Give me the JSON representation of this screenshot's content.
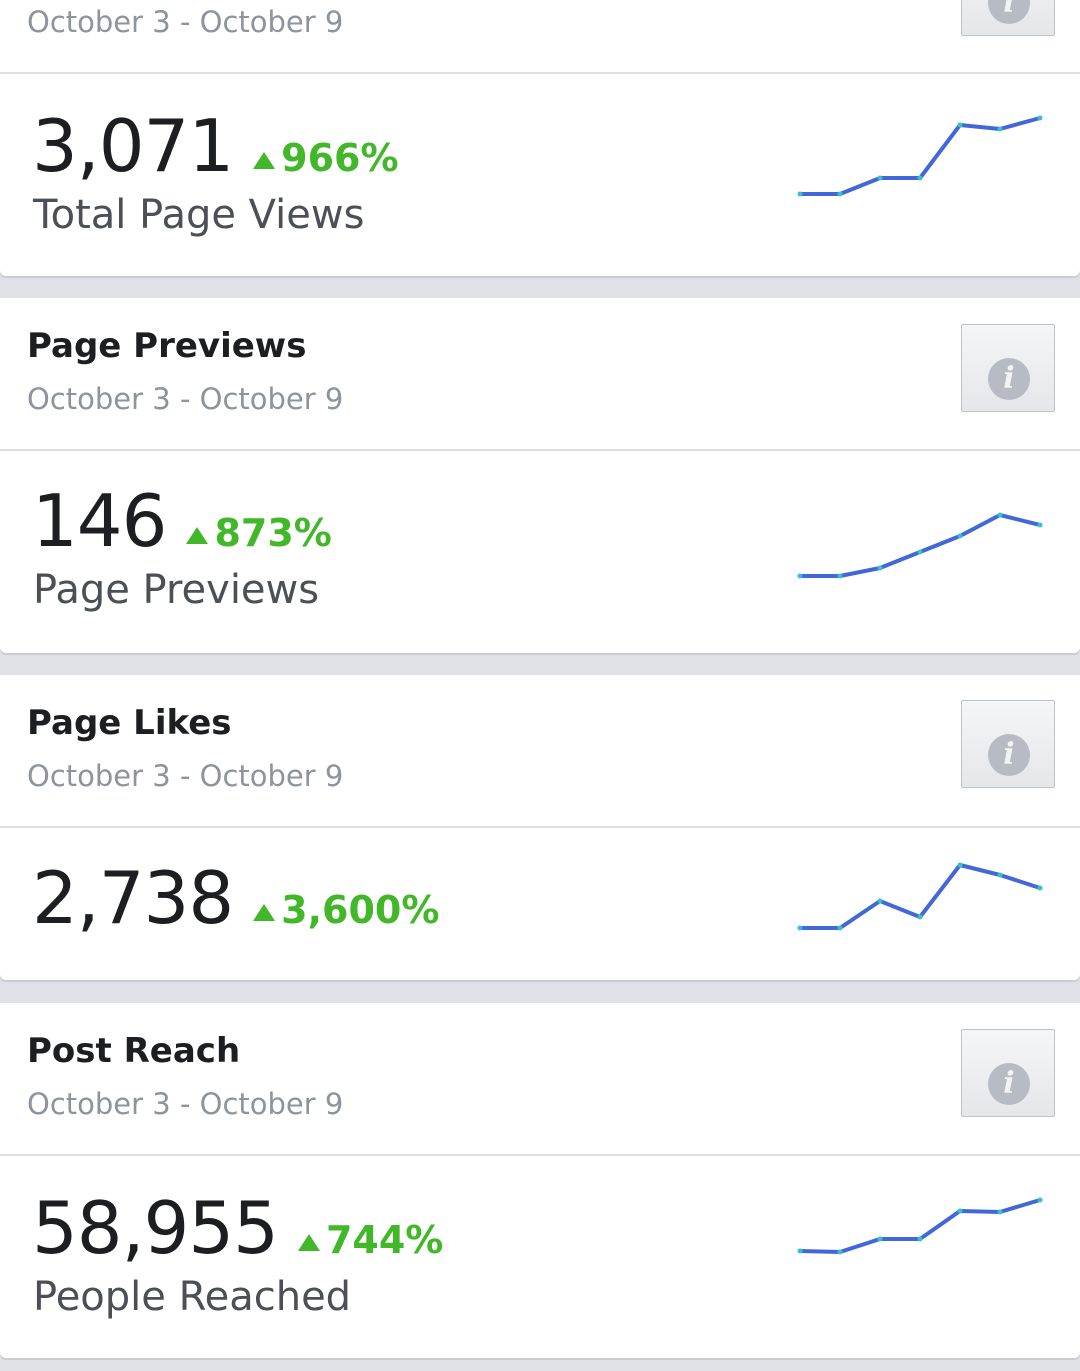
{
  "colors": {
    "accent": "#4267b2",
    "positive": "#42b72a",
    "line": "#4267d8"
  },
  "top_card": {
    "date": "October 3 - October 9"
  },
  "sections": [
    {
      "stat": {
        "value": "3,071",
        "change": "966%",
        "metric_label": "Total Page Views"
      },
      "sparkline": [
        10,
        10,
        26,
        26,
        79,
        75,
        86
      ]
    },
    {
      "title": "Page Previews",
      "date": "October 3 - October 9",
      "stat": {
        "value": "146",
        "change": "873%",
        "metric_label": "Page Previews"
      },
      "sparkline": [
        10,
        10,
        18,
        34,
        50,
        71,
        61
      ]
    },
    {
      "title": "Page Likes",
      "date": "October 3 - October 9",
      "stat": {
        "value": "2,738",
        "change": "3,600%",
        "metric_label": ""
      },
      "sparkline": [
        10,
        10,
        37,
        21,
        73,
        63,
        50
      ]
    },
    {
      "title": "Post Reach",
      "date": "October 3 - October 9",
      "stat": {
        "value": "58,955",
        "change": "744%",
        "metric_label": "People Reached"
      },
      "sparkline": [
        10,
        9,
        22,
        22,
        50,
        49,
        61
      ]
    }
  ]
}
